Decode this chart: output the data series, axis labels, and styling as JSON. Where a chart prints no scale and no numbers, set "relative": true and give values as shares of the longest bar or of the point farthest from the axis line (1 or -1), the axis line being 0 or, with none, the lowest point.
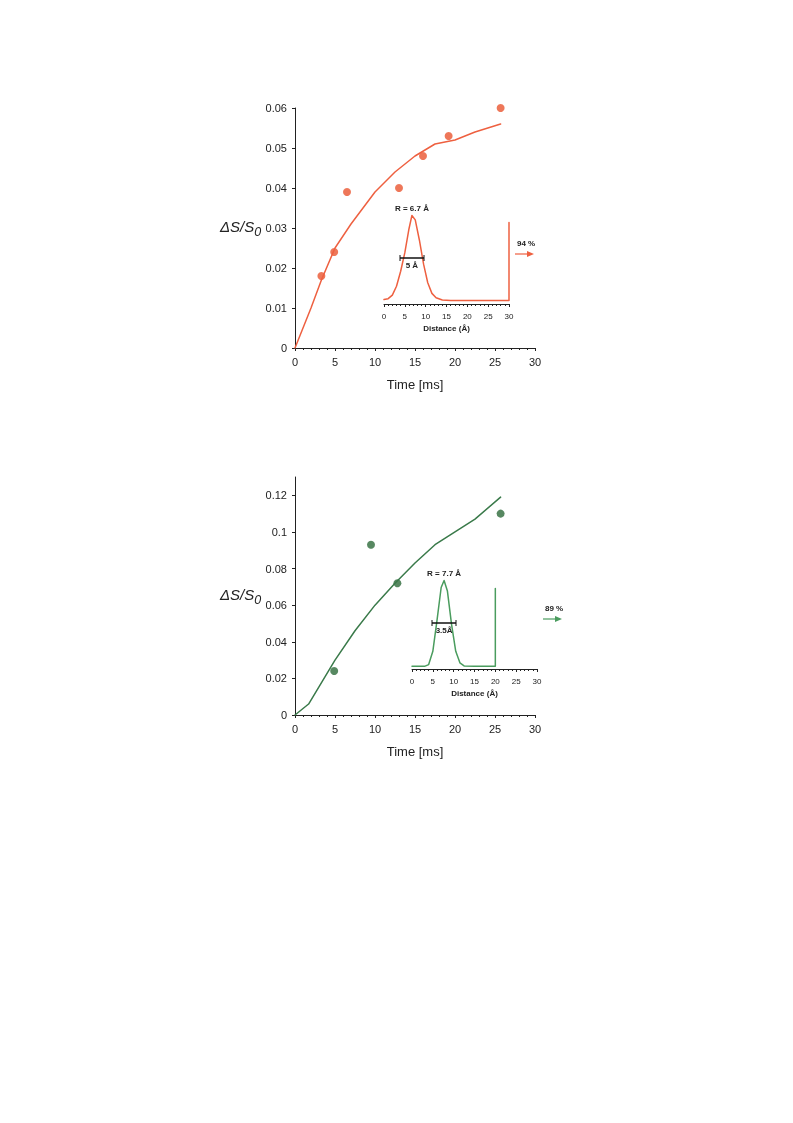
{
  "chart_data": [
    {
      "type": "scatter",
      "xlabel": "Time [ms]",
      "ylabel": "ΔS/S$_{0}$",
      "xlim": [
        0,
        30
      ],
      "xticks": [
        0,
        5,
        10,
        15,
        20,
        25,
        30
      ],
      "ylim": [
        0,
        0.06
      ],
      "yticks": [
        0,
        0.01,
        0.02,
        0.03,
        0.04,
        0.05,
        0.06
      ],
      "grid": false,
      "series": [
        {
          "type": "scatter",
          "marker": "circle",
          "color": "#ea5530",
          "x": [
            3.3,
            4.9,
            6.5,
            13,
            16,
            19.2,
            25.7
          ],
          "values": [
            0.018,
            0.024,
            0.039,
            0.04,
            0.048,
            0.053,
            0.06
          ]
        },
        {
          "type": "line",
          "marker": "none",
          "color": "#ee6040",
          "x": [
            0,
            2,
            3.3,
            5,
            7,
            10,
            12.5,
            15,
            17.5,
            20,
            22.5,
            25.7
          ],
          "values": [
            0,
            0.01,
            0.017,
            0.025,
            0.031,
            0.039,
            0.044,
            0.048,
            0.051,
            0.052,
            0.054,
            0.056
          ]
        }
      ]
    },
    {
      "type": "line",
      "relative": true,
      "xlabel": "Distance (Å)",
      "xlim": [
        0,
        30
      ],
      "xticks": [
        0,
        5,
        10,
        15,
        20,
        25,
        30
      ],
      "tick_labels": "x",
      "color": "#ee6040",
      "x": [
        0,
        1,
        2,
        3,
        4,
        5,
        6,
        6.7,
        7.5,
        8.5,
        9.5,
        10.5,
        11.5,
        12.5,
        14,
        16,
        20,
        25,
        30,
        30
      ],
      "values": [
        0.05,
        0.06,
        0.1,
        0.2,
        0.37,
        0.58,
        0.85,
        1,
        0.95,
        0.72,
        0.45,
        0.24,
        0.12,
        0.07,
        0.045,
        0.04,
        0.04,
        0.04,
        0.04,
        0.92
      ],
      "annotations": [
        {
          "text": "R = 6.7 Å",
          "x": 6.7,
          "y": 1
        },
        "5 Å",
        "94 %"
      ]
    },
    {
      "type": "scatter",
      "xlabel": "Time [ms]",
      "ylabel": "ΔS/S$_{0}$",
      "xlim": [
        0,
        30
      ],
      "xticks": [
        0,
        5,
        10,
        15,
        20,
        25,
        30
      ],
      "ylim": [
        0,
        0.13
      ],
      "yticks": [
        0,
        0.02,
        0.04,
        0.06,
        0.08,
        0.1,
        0.12
      ],
      "grid": false,
      "series": [
        {
          "type": "scatter",
          "marker": "circle",
          "color": "#2d6a3a",
          "x": [
            4.9,
            9.5,
            12.8,
            25.7
          ],
          "values": [
            0.024,
            0.093,
            0.072,
            0.11
          ]
        },
        {
          "type": "line",
          "marker": "none",
          "color": "#3a7a4a",
          "x": [
            0,
            1.7,
            5,
            7.5,
            10,
            12.5,
            15,
            17.5,
            20,
            22.5,
            25.7
          ],
          "values": [
            0,
            0.006,
            0.03,
            0.046,
            0.06,
            0.072,
            0.083,
            0.093,
            0.1,
            0.107,
            0.119
          ]
        }
      ]
    },
    {
      "type": "line",
      "relative": true,
      "xlabel": "Distance (Å)",
      "xlim": [
        0,
        30
      ],
      "xticks": [
        0,
        5,
        10,
        15,
        20,
        25,
        30
      ],
      "tick_labels": "x",
      "color": "#4a9c5e",
      "x": [
        0,
        3,
        4,
        5,
        6,
        7,
        7.7,
        8.5,
        9.5,
        10.5,
        11.5,
        12.5,
        15,
        20,
        20
      ],
      "values": [
        0.03,
        0.03,
        0.05,
        0.2,
        0.55,
        0.92,
        1,
        0.88,
        0.5,
        0.2,
        0.07,
        0.035,
        0.03,
        0.03,
        0.91
      ],
      "annotations": [
        {
          "text": "R = 7.7 Å",
          "x": 7.7,
          "y": 1
        },
        "3.5Å",
        "89 %"
      ]
    }
  ]
}
